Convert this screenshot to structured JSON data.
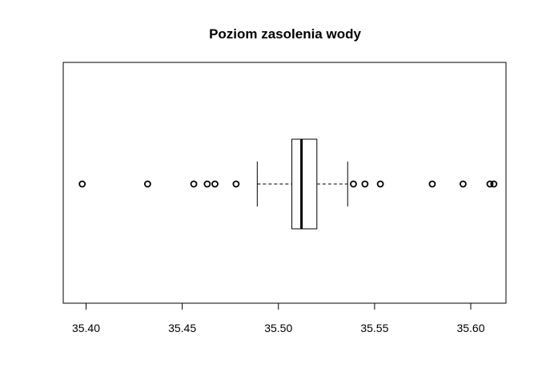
{
  "chart_data": {
    "type": "boxplot",
    "orientation": "horizontal",
    "title": "Poziom zasolenia wody",
    "xlabel": "",
    "ylabel": "",
    "xlim": [
      35.39,
      35.615
    ],
    "ticks": [
      35.4,
      35.45,
      35.5,
      35.55,
      35.6
    ],
    "tick_labels": [
      "35.40",
      "35.45",
      "35.50",
      "35.55",
      "35.60"
    ],
    "box": {
      "whisker_low": 35.489,
      "q1": 35.507,
      "median": 35.512,
      "q3": 35.52,
      "whisker_high": 35.536
    },
    "outliers": [
      35.398,
      35.432,
      35.456,
      35.463,
      35.467,
      35.478,
      35.539,
      35.545,
      35.553,
      35.58,
      35.596,
      35.61,
      35.612
    ],
    "grid": false,
    "legend": "none"
  }
}
